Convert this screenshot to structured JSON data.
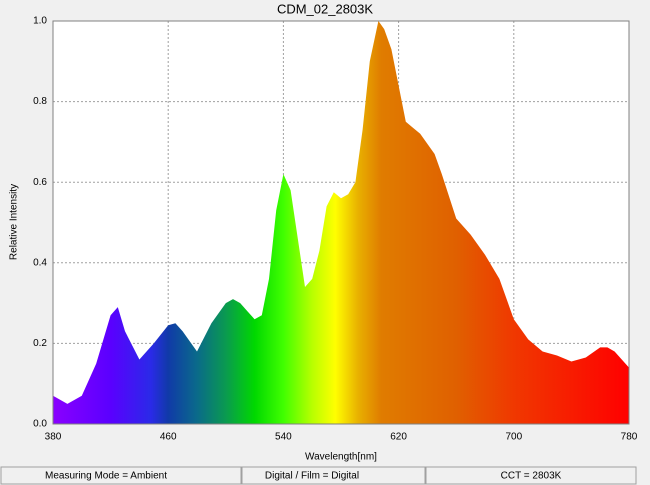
{
  "chart_data": {
    "type": "area",
    "title": "CDM_02_2803K",
    "x_label": "Wavelength[nm]",
    "y_label": "Relative Intensity",
    "x": [
      380,
      390,
      400,
      410,
      420,
      425,
      430,
      440,
      450,
      460,
      465,
      470,
      480,
      490,
      500,
      505,
      510,
      515,
      520,
      525,
      530,
      535,
      540,
      545,
      550,
      555,
      560,
      565,
      570,
      575,
      580,
      585,
      590,
      595,
      600,
      606,
      610,
      615,
      620,
      625,
      635,
      645,
      650,
      660,
      670,
      680,
      690,
      700,
      710,
      720,
      730,
      740,
      750,
      760,
      765,
      770,
      780
    ],
    "values": [
      0.07,
      0.05,
      0.07,
      0.15,
      0.27,
      0.29,
      0.23,
      0.16,
      0.2,
      0.245,
      0.25,
      0.23,
      0.18,
      0.25,
      0.3,
      0.31,
      0.3,
      0.28,
      0.26,
      0.27,
      0.36,
      0.53,
      0.62,
      0.58,
      0.46,
      0.34,
      0.36,
      0.43,
      0.54,
      0.575,
      0.56,
      0.57,
      0.6,
      0.73,
      0.9,
      1.0,
      0.98,
      0.93,
      0.84,
      0.75,
      0.72,
      0.67,
      0.62,
      0.51,
      0.47,
      0.42,
      0.36,
      0.26,
      0.21,
      0.18,
      0.17,
      0.155,
      0.165,
      0.19,
      0.19,
      0.18,
      0.14
    ],
    "xlim": [
      380,
      780
    ],
    "xticks": [
      380,
      460,
      540,
      620,
      700,
      780
    ],
    "ylim": [
      0,
      1
    ],
    "yticks": [
      {
        "value": 0,
        "label": "0.0"
      },
      0.2,
      0.4,
      0.6,
      0.8,
      {
        "value": 1,
        "label": "1.0"
      }
    ],
    "grid": true
  },
  "status_bar": [
    "Measuring Mode = Ambient",
    "Digital / Film = Digital",
    "CCT = 2803K"
  ]
}
